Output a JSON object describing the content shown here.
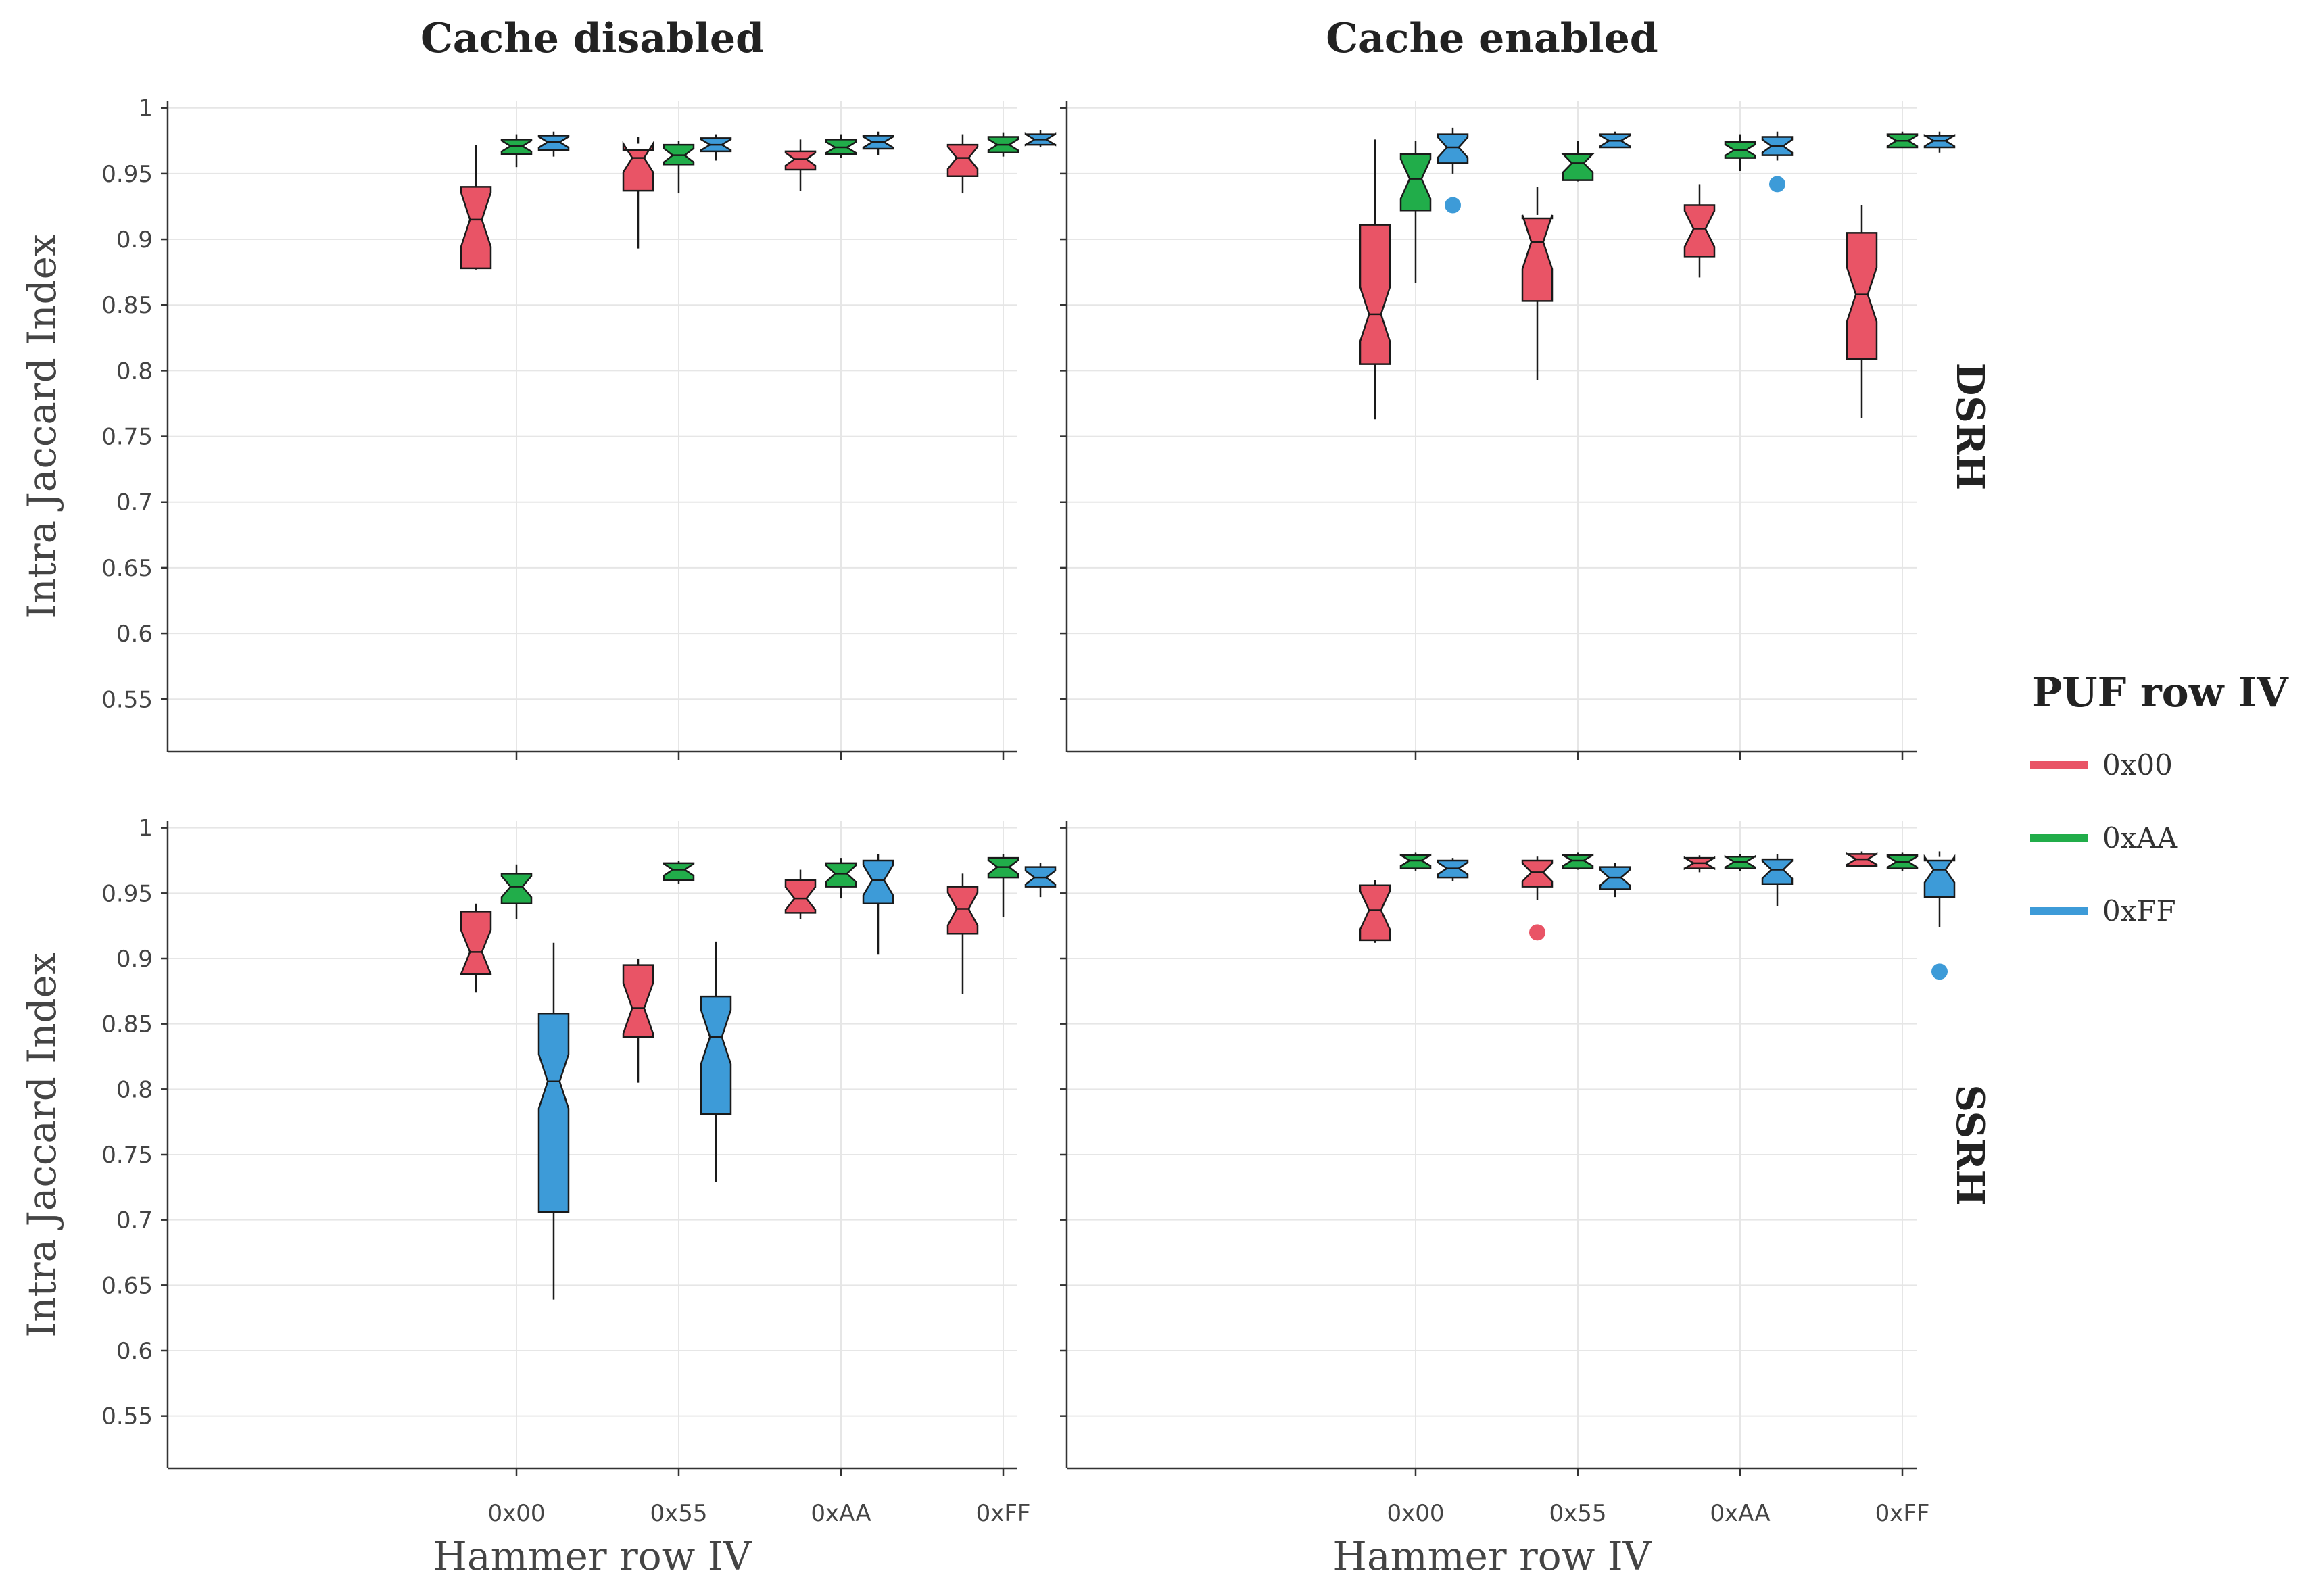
{
  "chart_data": {
    "type": "boxplot",
    "layout": "2x2 facet grid",
    "facet_columns": [
      "Cache disabled",
      "Cache enabled"
    ],
    "facet_rows": [
      "DSRH",
      "SSRH"
    ],
    "xlabel": "Hammer row IV",
    "ylabel": "Intra Jaccard Index",
    "categories": [
      "0x00",
      "0x55",
      "0xAA",
      "0xFF"
    ],
    "ylim": [
      0.51,
      1.005
    ],
    "yticks": [
      "1",
      "0.95",
      "0.9",
      "0.85",
      "0.8",
      "0.75",
      "0.7",
      "0.65",
      "0.6",
      "0.55"
    ],
    "legend": {
      "title": "PUF row IV",
      "items": [
        {
          "label": "0x00",
          "color": "#e95466"
        },
        {
          "label": "0xAA",
          "color": "#21ad4a"
        },
        {
          "label": "0xFF",
          "color": "#3d9bd8"
        }
      ]
    },
    "panels": [
      {
        "column": "Cache disabled",
        "row": "DSRH",
        "series": [
          {
            "name": "0x00",
            "boxes": [
              {
                "min": 0.877,
                "q1": 0.878,
                "median": 0.915,
                "q3": 0.94,
                "max": 0.972,
                "outliers": []
              },
              {
                "min": 0.893,
                "q1": 0.937,
                "median": 0.962,
                "q3": 0.968,
                "max": 0.978,
                "outliers": []
              },
              {
                "min": 0.937,
                "q1": 0.953,
                "median": 0.961,
                "q3": 0.967,
                "max": 0.976,
                "outliers": []
              },
              {
                "min": 0.935,
                "q1": 0.948,
                "median": 0.962,
                "q3": 0.972,
                "max": 0.98,
                "outliers": []
              }
            ]
          },
          {
            "name": "0xAA",
            "boxes": [
              {
                "min": 0.955,
                "q1": 0.965,
                "median": 0.971,
                "q3": 0.976,
                "max": 0.98,
                "outliers": []
              },
              {
                "min": 0.935,
                "q1": 0.957,
                "median": 0.964,
                "q3": 0.972,
                "max": 0.975,
                "outliers": []
              },
              {
                "min": 0.962,
                "q1": 0.965,
                "median": 0.97,
                "q3": 0.976,
                "max": 0.98,
                "outliers": []
              },
              {
                "min": 0.963,
                "q1": 0.966,
                "median": 0.972,
                "q3": 0.978,
                "max": 0.981,
                "outliers": []
              }
            ]
          },
          {
            "name": "0xFF",
            "boxes": [
              {
                "min": 0.963,
                "q1": 0.968,
                "median": 0.974,
                "q3": 0.979,
                "max": 0.982,
                "outliers": []
              },
              {
                "min": 0.96,
                "q1": 0.967,
                "median": 0.972,
                "q3": 0.977,
                "max": 0.98,
                "outliers": []
              },
              {
                "min": 0.964,
                "q1": 0.969,
                "median": 0.974,
                "q3": 0.979,
                "max": 0.982,
                "outliers": []
              },
              {
                "min": 0.97,
                "q1": 0.972,
                "median": 0.976,
                "q3": 0.98,
                "max": 0.983,
                "outliers": []
              }
            ]
          }
        ]
      },
      {
        "column": "Cache enabled",
        "row": "DSRH",
        "series": [
          {
            "name": "0x00",
            "boxes": [
              {
                "min": 0.763,
                "q1": 0.805,
                "median": 0.843,
                "q3": 0.911,
                "max": 0.976,
                "outliers": []
              },
              {
                "min": 0.793,
                "q1": 0.853,
                "median": 0.898,
                "q3": 0.916,
                "max": 0.94,
                "outliers": []
              },
              {
                "min": 0.871,
                "q1": 0.887,
                "median": 0.908,
                "q3": 0.926,
                "max": 0.942,
                "outliers": []
              },
              {
                "min": 0.764,
                "q1": 0.809,
                "median": 0.858,
                "q3": 0.905,
                "max": 0.926,
                "outliers": []
              }
            ]
          },
          {
            "name": "0xAA",
            "boxes": [
              {
                "min": 0.867,
                "q1": 0.922,
                "median": 0.946,
                "q3": 0.965,
                "max": 0.975,
                "outliers": []
              },
              {
                "min": 0.944,
                "q1": 0.945,
                "median": 0.958,
                "q3": 0.965,
                "max": 0.975,
                "outliers": []
              },
              {
                "min": 0.952,
                "q1": 0.962,
                "median": 0.968,
                "q3": 0.974,
                "max": 0.98,
                "outliers": []
              },
              {
                "min": 0.97,
                "q1": 0.97,
                "median": 0.975,
                "q3": 0.98,
                "max": 0.982,
                "outliers": []
              }
            ]
          },
          {
            "name": "0xFF",
            "boxes": [
              {
                "min": 0.95,
                "q1": 0.958,
                "median": 0.97,
                "q3": 0.98,
                "max": 0.985,
                "outliers": [
                  0.926
                ]
              },
              {
                "min": 0.97,
                "q1": 0.97,
                "median": 0.975,
                "q3": 0.98,
                "max": 0.982,
                "outliers": []
              },
              {
                "min": 0.96,
                "q1": 0.964,
                "median": 0.971,
                "q3": 0.978,
                "max": 0.982,
                "outliers": [
                  0.942
                ]
              },
              {
                "min": 0.966,
                "q1": 0.97,
                "median": 0.975,
                "q3": 0.979,
                "max": 0.982,
                "outliers": []
              }
            ]
          }
        ]
      },
      {
        "column": "Cache disabled",
        "row": "SSRH",
        "series": [
          {
            "name": "0x00",
            "boxes": [
              {
                "min": 0.874,
                "q1": 0.888,
                "median": 0.905,
                "q3": 0.936,
                "max": 0.942,
                "outliers": []
              },
              {
                "min": 0.805,
                "q1": 0.84,
                "median": 0.862,
                "q3": 0.895,
                "max": 0.9,
                "outliers": []
              },
              {
                "min": 0.93,
                "q1": 0.935,
                "median": 0.946,
                "q3": 0.96,
                "max": 0.968,
                "outliers": []
              },
              {
                "min": 0.873,
                "q1": 0.919,
                "median": 0.938,
                "q3": 0.955,
                "max": 0.965,
                "outliers": []
              }
            ]
          },
          {
            "name": "0xAA",
            "boxes": [
              {
                "min": 0.93,
                "q1": 0.942,
                "median": 0.955,
                "q3": 0.965,
                "max": 0.972,
                "outliers": []
              },
              {
                "min": 0.957,
                "q1": 0.96,
                "median": 0.968,
                "q3": 0.973,
                "max": 0.975,
                "outliers": []
              },
              {
                "min": 0.946,
                "q1": 0.955,
                "median": 0.965,
                "q3": 0.973,
                "max": 0.977,
                "outliers": []
              },
              {
                "min": 0.932,
                "q1": 0.962,
                "median": 0.97,
                "q3": 0.977,
                "max": 0.98,
                "outliers": []
              }
            ]
          },
          {
            "name": "0xFF",
            "boxes": [
              {
                "min": 0.639,
                "q1": 0.706,
                "median": 0.806,
                "q3": 0.858,
                "max": 0.912,
                "outliers": []
              },
              {
                "min": 0.729,
                "q1": 0.781,
                "median": 0.84,
                "q3": 0.871,
                "max": 0.913,
                "outliers": []
              },
              {
                "min": 0.903,
                "q1": 0.942,
                "median": 0.96,
                "q3": 0.975,
                "max": 0.98,
                "outliers": []
              },
              {
                "min": 0.947,
                "q1": 0.955,
                "median": 0.962,
                "q3": 0.97,
                "max": 0.973,
                "outliers": []
              }
            ]
          }
        ]
      },
      {
        "column": "Cache enabled",
        "row": "SSRH",
        "series": [
          {
            "name": "0x00",
            "boxes": [
              {
                "min": 0.912,
                "q1": 0.914,
                "median": 0.937,
                "q3": 0.956,
                "max": 0.96,
                "outliers": []
              },
              {
                "min": 0.945,
                "q1": 0.955,
                "median": 0.966,
                "q3": 0.975,
                "max": 0.978,
                "outliers": [
                  0.92
                ]
              },
              {
                "min": 0.966,
                "q1": 0.969,
                "median": 0.973,
                "q3": 0.977,
                "max": 0.979,
                "outliers": []
              },
              {
                "min": 0.97,
                "q1": 0.971,
                "median": 0.976,
                "q3": 0.98,
                "max": 0.982,
                "outliers": []
              }
            ]
          },
          {
            "name": "0xAA",
            "boxes": [
              {
                "min": 0.967,
                "q1": 0.969,
                "median": 0.975,
                "q3": 0.979,
                "max": 0.981,
                "outliers": []
              },
              {
                "min": 0.968,
                "q1": 0.969,
                "median": 0.975,
                "q3": 0.979,
                "max": 0.981,
                "outliers": []
              },
              {
                "min": 0.967,
                "q1": 0.969,
                "median": 0.974,
                "q3": 0.978,
                "max": 0.98,
                "outliers": []
              },
              {
                "min": 0.967,
                "q1": 0.969,
                "median": 0.974,
                "q3": 0.979,
                "max": 0.981,
                "outliers": []
              }
            ]
          },
          {
            "name": "0xFF",
            "boxes": [
              {
                "min": 0.959,
                "q1": 0.962,
                "median": 0.969,
                "q3": 0.975,
                "max": 0.977,
                "outliers": []
              },
              {
                "min": 0.947,
                "q1": 0.953,
                "median": 0.962,
                "q3": 0.97,
                "max": 0.973,
                "outliers": []
              },
              {
                "min": 0.94,
                "q1": 0.957,
                "median": 0.968,
                "q3": 0.976,
                "max": 0.98,
                "outliers": []
              },
              {
                "min": 0.924,
                "q1": 0.947,
                "median": 0.968,
                "q3": 0.975,
                "max": 0.982,
                "outliers": [
                  0.89
                ]
              }
            ]
          }
        ]
      }
    ]
  }
}
